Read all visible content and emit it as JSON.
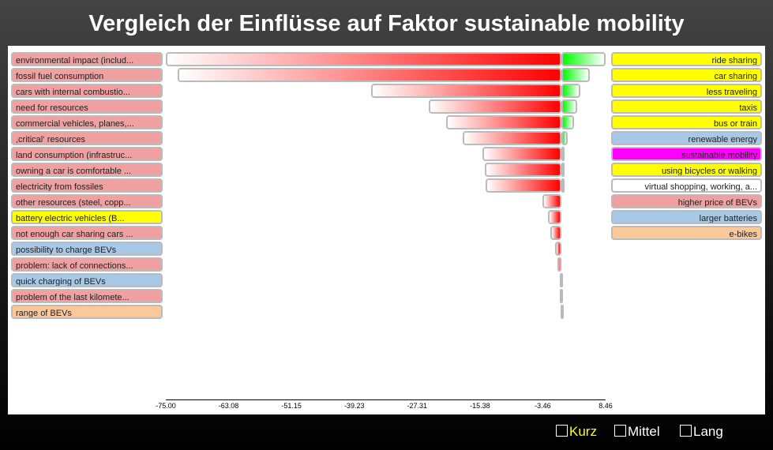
{
  "title": "Vergleich der Einflüsse auf Faktor sustainable mobility",
  "chart_data": {
    "type": "bar",
    "orientation": "diverging-horizontal",
    "xlim": [
      -75.0,
      8.46
    ],
    "x_ticks": [
      "-75.00",
      "-63.08",
      "-51.15",
      "-39.23",
      "-27.31",
      "-15.38",
      "-3.46",
      "8.46"
    ],
    "negative_influences": [
      {
        "label": "environmental impact (includ...",
        "value": -75.0,
        "color": "#f0a0a0"
      },
      {
        "label": "fossil fuel consumption",
        "value": -72.8,
        "color": "#f0a0a0"
      },
      {
        "label": "cars with internal combustio...",
        "value": -36.1,
        "color": "#f0a0a0"
      },
      {
        "label": "need for resources",
        "value": -25.1,
        "color": "#f0a0a0"
      },
      {
        "label": "commercial vehicles, planes,...",
        "value": -21.8,
        "color": "#f0a0a0"
      },
      {
        "label": ",critical‘ resources",
        "value": -18.6,
        "color": "#f0a0a0"
      },
      {
        "label": "land consumption (infrastruc...",
        "value": -14.9,
        "color": "#f0a0a0"
      },
      {
        "label": "owning a car is comfortable ...",
        "value": -14.5,
        "color": "#f0a0a0"
      },
      {
        "label": "electricity from fossiles",
        "value": -14.3,
        "color": "#f0a0a0"
      },
      {
        "label": "other resources (steel, copp...",
        "value": -3.6,
        "color": "#f0a0a0"
      },
      {
        "label": "battery electric vehicles (B...",
        "value": -2.5,
        "color": "#ffff00"
      },
      {
        "label": "not enough car sharing cars ...",
        "value": -2.0,
        "color": "#f0a0a0"
      },
      {
        "label": "possibility to charge BEVs",
        "value": -1.1,
        "color": "#a8c8e8"
      },
      {
        "label": "problem: lack of connections...",
        "value": -0.7,
        "color": "#f0a0a0"
      },
      {
        "label": "quick charging of BEVs",
        "value": -0.3,
        "color": "#a8c8e8"
      },
      {
        "label": "problem of the last kilomete...",
        "value": -0.3,
        "color": "#f0a0a0"
      },
      {
        "label": "range of BEVs",
        "value": -0.1,
        "color": "#fbc89a"
      }
    ],
    "positive_influences": [
      {
        "label": "ride sharing",
        "value": 8.46,
        "color": "#ffff00"
      },
      {
        "label": "car sharing",
        "value": 5.5,
        "color": "#ffff00"
      },
      {
        "label": "less traveling",
        "value": 3.6,
        "color": "#ffff00"
      },
      {
        "label": "taxis",
        "value": 3.0,
        "color": "#ffff00"
      },
      {
        "label": "bus or train",
        "value": 2.5,
        "color": "#ffff00"
      },
      {
        "label": "renewable energy",
        "value": 1.3,
        "color": "#a8c8e8"
      },
      {
        "label": "sustainable mobility",
        "value": 0.7,
        "color": "#ff00ff"
      },
      {
        "label": "using bicycles or walking",
        "value": 0.6,
        "color": "#ffff00"
      },
      {
        "label": "virtual shopping, working, a...",
        "value": 0.5,
        "color": "#ffffff"
      },
      {
        "label": "higher price of BEVs",
        "value": 0,
        "color": "#f0a0a0"
      },
      {
        "label": "larger batteries",
        "value": 0,
        "color": "#a8c8e8"
      },
      {
        "label": "e-bikes",
        "value": 0,
        "color": "#fbc89a"
      }
    ]
  },
  "legend": {
    "short": "Kurz",
    "medium": "Mittel",
    "long": "Lang"
  },
  "colors": {
    "negative_bar": "#ff0000",
    "positive_bar": "#00ff00",
    "active_legend": "#ffff00"
  }
}
